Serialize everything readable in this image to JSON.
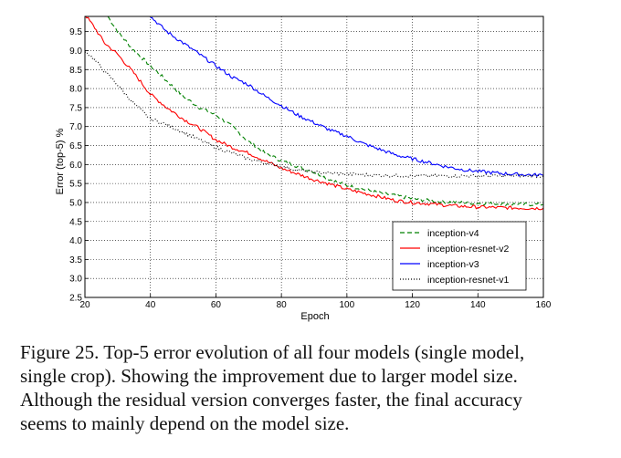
{
  "chart_data": {
    "type": "line",
    "title": "",
    "xlabel": "Epoch",
    "ylabel": "Error (top-5) %",
    "xlim": [
      20,
      160
    ],
    "ylim": [
      2.5,
      9.9
    ],
    "xticks": [
      20,
      40,
      60,
      80,
      100,
      120,
      140,
      160
    ],
    "yticks": [
      2.5,
      3.0,
      3.5,
      4.0,
      4.5,
      5.0,
      5.5,
      6.0,
      6.5,
      7.0,
      7.5,
      8.0,
      8.5,
      9.0,
      9.5
    ],
    "grid": true,
    "legend_position": "lower-right",
    "series": [
      {
        "name": "inception-v4",
        "color": "#008000",
        "style": "dashed",
        "points": [
          [
            27,
            9.9
          ],
          [
            30,
            9.5
          ],
          [
            35,
            9.0
          ],
          [
            40,
            8.6
          ],
          [
            45,
            8.2
          ],
          [
            50,
            7.8
          ],
          [
            55,
            7.5
          ],
          [
            60,
            7.3
          ],
          [
            65,
            7.0
          ],
          [
            70,
            6.6
          ],
          [
            75,
            6.3
          ],
          [
            80,
            6.1
          ],
          [
            85,
            5.95
          ],
          [
            90,
            5.8
          ],
          [
            95,
            5.6
          ],
          [
            100,
            5.45
          ],
          [
            105,
            5.35
          ],
          [
            110,
            5.25
          ],
          [
            115,
            5.18
          ],
          [
            120,
            5.1
          ],
          [
            125,
            5.05
          ],
          [
            130,
            5.02
          ],
          [
            135,
            5.0
          ],
          [
            140,
            4.98
          ],
          [
            145,
            4.97
          ],
          [
            150,
            4.96
          ],
          [
            155,
            4.95
          ],
          [
            160,
            4.95
          ]
        ]
      },
      {
        "name": "inception-resnet-v2",
        "color": "#ff0000",
        "style": "solid",
        "points": [
          [
            20,
            9.95
          ],
          [
            23,
            9.6
          ],
          [
            26,
            9.2
          ],
          [
            30,
            8.9
          ],
          [
            35,
            8.4
          ],
          [
            40,
            7.85
          ],
          [
            45,
            7.5
          ],
          [
            50,
            7.2
          ],
          [
            55,
            6.95
          ],
          [
            60,
            6.65
          ],
          [
            65,
            6.45
          ],
          [
            70,
            6.3
          ],
          [
            75,
            6.1
          ],
          [
            80,
            5.9
          ],
          [
            85,
            5.75
          ],
          [
            90,
            5.6
          ],
          [
            95,
            5.48
          ],
          [
            100,
            5.35
          ],
          [
            105,
            5.25
          ],
          [
            110,
            5.15
          ],
          [
            115,
            5.05
          ],
          [
            120,
            5.0
          ],
          [
            125,
            4.97
          ],
          [
            130,
            4.93
          ],
          [
            135,
            4.9
          ],
          [
            140,
            4.88
          ],
          [
            145,
            4.87
          ],
          [
            150,
            4.86
          ],
          [
            155,
            4.85
          ],
          [
            160,
            4.85
          ]
        ]
      },
      {
        "name": "inception-v3",
        "color": "#0000ff",
        "style": "solid",
        "points": [
          [
            40,
            9.9
          ],
          [
            45,
            9.5
          ],
          [
            50,
            9.2
          ],
          [
            55,
            8.9
          ],
          [
            60,
            8.6
          ],
          [
            65,
            8.3
          ],
          [
            70,
            8.1
          ],
          [
            75,
            7.8
          ],
          [
            80,
            7.55
          ],
          [
            85,
            7.3
          ],
          [
            90,
            7.1
          ],
          [
            95,
            6.9
          ],
          [
            100,
            6.75
          ],
          [
            105,
            6.55
          ],
          [
            110,
            6.4
          ],
          [
            115,
            6.25
          ],
          [
            120,
            6.15
          ],
          [
            125,
            6.05
          ],
          [
            130,
            5.95
          ],
          [
            135,
            5.87
          ],
          [
            140,
            5.82
          ],
          [
            145,
            5.78
          ],
          [
            150,
            5.75
          ],
          [
            155,
            5.73
          ],
          [
            160,
            5.72
          ]
        ]
      },
      {
        "name": "inception-resnet-v1",
        "color": "#000000",
        "style": "dotted",
        "points": [
          [
            20,
            9.0
          ],
          [
            23,
            8.75
          ],
          [
            26,
            8.45
          ],
          [
            30,
            8.1
          ],
          [
            35,
            7.6
          ],
          [
            40,
            7.2
          ],
          [
            45,
            7.05
          ],
          [
            50,
            6.85
          ],
          [
            55,
            6.65
          ],
          [
            60,
            6.45
          ],
          [
            65,
            6.3
          ],
          [
            70,
            6.15
          ],
          [
            75,
            6.05
          ],
          [
            80,
            5.95
          ],
          [
            85,
            5.85
          ],
          [
            90,
            5.8
          ],
          [
            95,
            5.77
          ],
          [
            100,
            5.75
          ],
          [
            105,
            5.73
          ],
          [
            110,
            5.72
          ],
          [
            115,
            5.71
          ],
          [
            120,
            5.7
          ],
          [
            125,
            5.7
          ],
          [
            130,
            5.7
          ],
          [
            135,
            5.7
          ],
          [
            140,
            5.7
          ],
          [
            145,
            5.7
          ],
          [
            150,
            5.7
          ],
          [
            155,
            5.7
          ],
          [
            160,
            5.7
          ]
        ]
      }
    ]
  },
  "caption": {
    "lines": [
      "Figure 25. Top-5 error evolution of all four models (single model,",
      "single crop). Showing the improvement due to larger model size.",
      "Although the residual version converges faster, the final accuracy",
      "seems to mainly depend on the model size."
    ]
  }
}
